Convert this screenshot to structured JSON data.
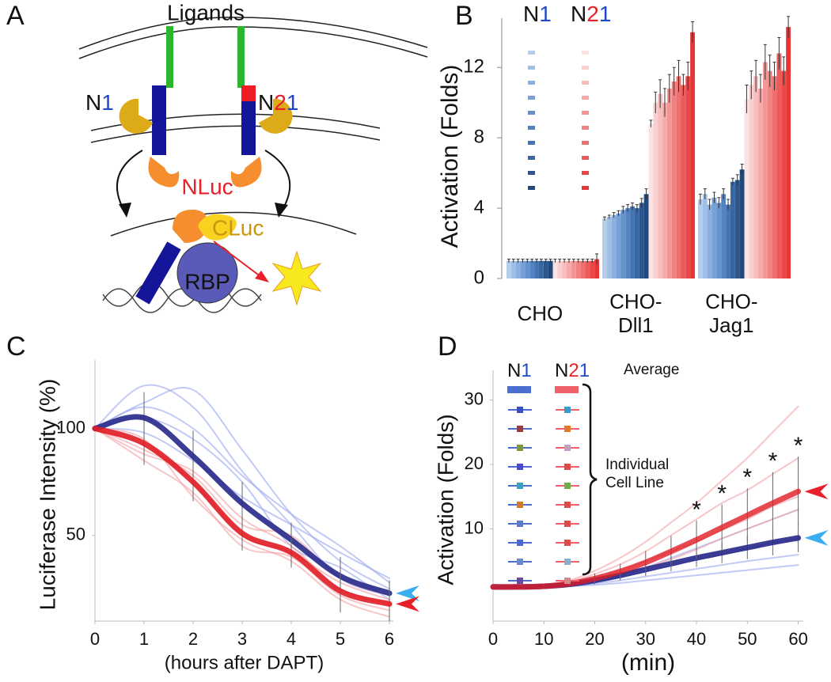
{
  "diagram": {
    "label": "A",
    "ligands": "Ligands",
    "receptors": [
      {
        "parts": [
          "N",
          "1"
        ]
      },
      {
        "parts": [
          "N",
          "2",
          "1"
        ]
      }
    ],
    "nluc": "NLuc",
    "cluc": "CLuc",
    "rbp": "RBP"
  },
  "chart_data": [
    {
      "type": "bar",
      "label": "B",
      "ylabel": "Activation (Folds)",
      "categories": [
        [
          "CHO"
        ],
        [
          "CHO-",
          "Dll1"
        ],
        [
          "CHO-",
          "Jag1"
        ]
      ],
      "ylim": [
        0,
        14.8
      ],
      "yticks": [
        0,
        4,
        8,
        12
      ],
      "series": [
        {
          "name": [
            "N",
            "1"
          ],
          "name_colors": [
            "#111111",
            "#1f49c8"
          ],
          "colors": [
            "#b4cdea",
            "#9fbfe6",
            "#8ab0df",
            "#77a1d6",
            "#6592cc",
            "#5483c1",
            "#4474b3",
            "#3766a3",
            "#2b5791",
            "#22497c"
          ],
          "values": [
            [
              1.0,
              1.0,
              1.0,
              1.0,
              1.0,
              1.0,
              1.0,
              1.0,
              1.0,
              1.0
            ],
            [
              3.4,
              3.5,
              3.6,
              3.7,
              3.9,
              4.0,
              4.1,
              4.0,
              4.3,
              4.8
            ],
            [
              4.5,
              4.8,
              4.2,
              4.6,
              4.3,
              4.8,
              4.2,
              5.5,
              5.6,
              6.2
            ]
          ],
          "errors": [
            [
              0.1,
              0.1,
              0.1,
              0.1,
              0.1,
              0.1,
              0.1,
              0.1,
              0.1,
              0.1
            ],
            [
              0.1,
              0.1,
              0.15,
              0.15,
              0.2,
              0.2,
              0.2,
              0.2,
              0.25,
              0.3
            ],
            [
              0.3,
              0.3,
              0.3,
              0.3,
              0.3,
              0.3,
              0.3,
              0.2,
              0.3,
              0.3
            ]
          ]
        },
        {
          "name": [
            "N",
            "2",
            "1"
          ],
          "name_colors": [
            "#111111",
            "#e8202a",
            "#1f49c8"
          ],
          "colors": [
            "#fbe3e3",
            "#f9cfcf",
            "#f7bcbc",
            "#f5a9a9",
            "#f39595",
            "#f18282",
            "#ef6f6f",
            "#ec5b5b",
            "#ea4848",
            "#e83535"
          ],
          "values": [
            [
              1.0,
              1.0,
              1.0,
              1.0,
              1.0,
              1.0,
              1.0,
              1.0,
              1.0,
              1.1
            ],
            [
              8.8,
              10.0,
              10.5,
              10.0,
              10.8,
              11.2,
              11.5,
              11.0,
              11.5,
              14.0
            ],
            [
              10.2,
              11.0,
              11.5,
              10.8,
              12.3,
              11.8,
              11.5,
              12.8,
              11.8,
              14.3
            ]
          ],
          "errors": [
            [
              0.1,
              0.1,
              0.1,
              0.1,
              0.1,
              0.1,
              0.1,
              0.1,
              0.1,
              0.3
            ],
            [
              0.2,
              0.6,
              0.8,
              0.8,
              0.8,
              0.8,
              0.9,
              0.6,
              0.8,
              0.6
            ],
            [
              0.8,
              0.8,
              0.9,
              0.8,
              1.0,
              0.9,
              0.8,
              0.9,
              0.8,
              0.6
            ]
          ]
        }
      ]
    },
    {
      "type": "line",
      "label": "C",
      "ylabel": "Luciferase Intensity (%)",
      "xlabel": "(hours after DAPT)",
      "x": [
        0,
        1,
        2,
        3,
        4,
        5,
        6
      ],
      "xlim": [
        0,
        6.08
      ],
      "xticks": [
        0,
        1,
        2,
        3,
        4,
        5,
        6
      ],
      "ylim": [
        10,
        132
      ],
      "yticks": [
        50,
        100
      ],
      "series": [
        {
          "color": "#9aa6ee",
          "linewidth": 2,
          "opacity": 0.6,
          "values": [
            100,
            112,
            118,
            90,
            60,
            38,
            25
          ]
        },
        {
          "color": "#9aa6ee",
          "linewidth": 2,
          "opacity": 0.6,
          "values": [
            100,
            120,
            110,
            80,
            55,
            30,
            22
          ]
        },
        {
          "color": "#9aa6ee",
          "linewidth": 2,
          "opacity": 0.6,
          "values": [
            100,
            98,
            85,
            68,
            55,
            42,
            30
          ]
        },
        {
          "color": "#9aa6ee",
          "linewidth": 2,
          "opacity": 0.6,
          "values": [
            100,
            105,
            95,
            75,
            45,
            35,
            20
          ]
        },
        {
          "color": "#9aa6ee",
          "linewidth": 2,
          "opacity": 0.6,
          "values": [
            100,
            110,
            100,
            78,
            60,
            45,
            28
          ]
        },
        {
          "color": "#f4a0a4",
          "linewidth": 2,
          "opacity": 0.6,
          "values": [
            100,
            85,
            70,
            45,
            40,
            22,
            15
          ]
        },
        {
          "color": "#f4a0a4",
          "linewidth": 2,
          "opacity": 0.6,
          "values": [
            100,
            92,
            75,
            50,
            42,
            28,
            20
          ]
        },
        {
          "color": "#f4a0a4",
          "linewidth": 2,
          "opacity": 0.6,
          "values": [
            100,
            88,
            80,
            58,
            45,
            25,
            18
          ]
        },
        {
          "color": "#f4a0a4",
          "linewidth": 2,
          "opacity": 0.6,
          "values": [
            100,
            95,
            68,
            48,
            38,
            20,
            12
          ]
        },
        {
          "color": "#f4a0a4",
          "linewidth": 2,
          "opacity": 0.6,
          "values": [
            100,
            90,
            78,
            55,
            50,
            30,
            22
          ]
        },
        {
          "color": "#26288a",
          "linewidth": 7,
          "opacity": 0.9,
          "values": [
            100,
            105,
            87,
            65,
            48,
            31,
            23
          ],
          "errors": [
            0,
            12,
            12,
            10,
            8,
            9,
            6
          ],
          "arrow": "#3aaef0"
        },
        {
          "color": "#e01c24",
          "linewidth": 7,
          "opacity": 0.9,
          "values": [
            100,
            93,
            75,
            51,
            42,
            24,
            18
          ],
          "errors": [
            0,
            10,
            9,
            8,
            7,
            10,
            8
          ],
          "arrow": "#e8202a"
        }
      ]
    },
    {
      "type": "line",
      "label": "D",
      "ylabel": "Activation (Folds)",
      "xlabel": "(min)",
      "x": [
        0,
        5,
        10,
        15,
        20,
        25,
        30,
        35,
        40,
        45,
        50,
        55,
        60
      ],
      "xlim": [
        0,
        61
      ],
      "xticks": [
        0,
        10,
        20,
        30,
        40,
        50,
        60
      ],
      "ylim": [
        -4.3,
        34.6
      ],
      "yticks": [
        10,
        20,
        30
      ],
      "series": [
        {
          "color": "#9aa6ee",
          "linewidth": 2,
          "opacity": 0.6,
          "values": [
            1,
            1,
            1.1,
            1.4,
            2,
            2.8,
            4,
            5.5,
            7,
            8.5,
            10,
            11.5,
            13
          ]
        },
        {
          "color": "#9aa6ee",
          "linewidth": 2,
          "opacity": 0.6,
          "values": [
            1,
            1,
            1.1,
            1.3,
            1.8,
            2.5,
            3.4,
            4.3,
            5.2,
            6,
            7,
            7.8,
            8.5
          ]
        },
        {
          "color": "#9aa6ee",
          "linewidth": 2,
          "opacity": 0.6,
          "values": [
            1,
            1,
            1,
            1.2,
            1.5,
            2,
            2.6,
            3.2,
            3.8,
            4.4,
            5,
            5.5,
            6
          ]
        },
        {
          "color": "#9aa6ee",
          "linewidth": 2,
          "opacity": 0.6,
          "values": [
            1,
            1,
            1,
            1.1,
            1.3,
            1.6,
            2,
            2.4,
            2.8,
            3.2,
            3.6,
            4,
            4.4
          ]
        },
        {
          "color": "#f4a0a4",
          "linewidth": 2,
          "opacity": 0.6,
          "values": [
            1,
            1,
            1.3,
            2,
            3.5,
            5.5,
            8,
            11,
            14,
            17.5,
            21,
            25,
            29
          ]
        },
        {
          "color": "#f4a0a4",
          "linewidth": 2,
          "opacity": 0.6,
          "values": [
            1,
            1,
            1.2,
            1.8,
            3,
            4.5,
            6.5,
            9,
            11.5,
            14,
            16,
            18.5,
            21
          ]
        },
        {
          "color": "#f4a0a4",
          "linewidth": 2,
          "opacity": 0.6,
          "values": [
            1,
            1,
            1.1,
            1.5,
            2.4,
            3.5,
            5,
            6.5,
            8,
            9.8,
            11.5,
            13.5,
            15
          ]
        },
        {
          "color": "#f4a0a4",
          "linewidth": 2,
          "opacity": 0.6,
          "values": [
            1,
            1,
            1.1,
            1.4,
            2,
            3,
            4,
            5.3,
            6.8,
            8.5,
            10,
            11.5,
            13
          ]
        },
        {
          "color": "#26288a",
          "linewidth": 7,
          "opacity": 0.9,
          "values": [
            1,
            1,
            1.1,
            1.4,
            2,
            2.8,
            3.7,
            4.6,
            5.5,
            6.3,
            7.1,
            7.9,
            8.6
          ],
          "errors": [
            0,
            0.2,
            0.3,
            0.4,
            0.6,
            0.8,
            1,
            1.2,
            1.4,
            1.6,
            1.8,
            2,
            2.2
          ],
          "arrow": "#3aaef0"
        },
        {
          "color": "#e01c24",
          "linewidth": 7,
          "opacity": 0.8,
          "values": [
            1,
            1,
            1.1,
            1.5,
            2.3,
            3.4,
            4.8,
            6.5,
            8.3,
            10.2,
            12.1,
            14,
            15.8
          ],
          "errors": [
            0,
            0.2,
            0.3,
            0.5,
            0.8,
            1.2,
            1.8,
            2.4,
            3,
            3.6,
            4.2,
            4.8,
            5.4
          ],
          "arrow": "#e8202a"
        }
      ],
      "significance": {
        "label": "*",
        "x": [
          40,
          45,
          50,
          55,
          60
        ]
      },
      "legend": {
        "columns": [
          {
            "name": [
              "N",
              "1"
            ],
            "name_colors": [
              "#111111",
              "#1f49c8"
            ],
            "color": "#4a6fd0",
            "markers": [
              "#3a4fc0",
              "#9a3c3c",
              "#7a9a3c",
              "#4a4ad0",
              "#3aa0c0",
              "#d07a2a",
              "#5a7ad0",
              "#4a6ad0",
              "#6a8ad0",
              "#6a4aa0"
            ]
          },
          {
            "name": [
              "N",
              "2",
              "1"
            ],
            "name_colors": [
              "#111111",
              "#e8202a",
              "#1f49c8"
            ],
            "color": "#f06068",
            "markers": [
              "#3a9ad0",
              "#e07a2a",
              "#c0a0c0",
              "#e04a4a",
              "#6ab04a",
              "#e04a4a",
              "#e04a4a",
              "#e04a4a",
              "#8ab0d0",
              "#d08a8a"
            ]
          }
        ],
        "average": "Average",
        "individual": [
          "Individual",
          "Cell Line"
        ]
      }
    }
  ]
}
